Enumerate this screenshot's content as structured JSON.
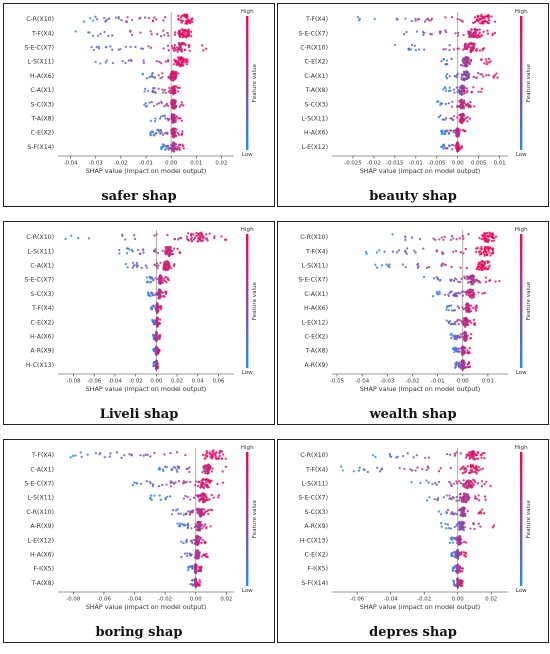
{
  "colors": {
    "low": "#1f8ef5",
    "high": "#ff0053",
    "zero_line": "#999999"
  },
  "colorbar": {
    "high": "High",
    "low": "Low",
    "title": "Feature value"
  },
  "chart_data": [
    {
      "type": "scatter",
      "subtype": "shap-beeswarm",
      "caption": "safer shap",
      "xlabel": "SHAP value (impact on model output)",
      "xlim": [
        -0.045,
        0.025
      ],
      "xticks": [
        -0.04,
        -0.03,
        -0.02,
        -0.01,
        0.0,
        0.01,
        0.02
      ],
      "features": [
        "C-R(X10)",
        "T-F(X4)",
        "S-E-C(X7)",
        "L-S(X11)",
        "H-A(X6)",
        "C-A(X1)",
        "S-C(X3)",
        "T-A(X8)",
        "C-E(X2)",
        "S-F(X14)"
      ],
      "ranges": [
        [
          -0.035,
          0.009
        ],
        [
          -0.039,
          0.008
        ],
        [
          -0.034,
          0.014
        ],
        [
          -0.031,
          0.008
        ],
        [
          -0.012,
          0.005
        ],
        [
          -0.011,
          0.004
        ],
        [
          -0.011,
          0.005
        ],
        [
          -0.008,
          0.006
        ],
        [
          -0.009,
          0.005
        ],
        [
          -0.004,
          0.005
        ]
      ],
      "centers": [
        0.006,
        0.005,
        0.004,
        0.004,
        0.001,
        0.001,
        0.001,
        0.001,
        0.001,
        0.001
      ]
    },
    {
      "type": "scatter",
      "subtype": "shap-beeswarm",
      "caption": "beauty shap",
      "xlabel": "SHAP value (impact on model output)",
      "xlim": [
        -0.03,
        0.012
      ],
      "xticks": [
        -0.025,
        -0.02,
        -0.015,
        -0.01,
        -0.005,
        0.0,
        0.005,
        0.01
      ],
      "features": [
        "T-F(X4)",
        "S-E-C(X7)",
        "C-R(X10)",
        "C-E(X2)",
        "C-A(X1)",
        "T-A(X8)",
        "S-C(X3)",
        "L-S(X11)",
        "H-A(X6)",
        "L-E(X12)"
      ],
      "ranges": [
        [
          -0.024,
          0.009
        ],
        [
          -0.015,
          0.009
        ],
        [
          -0.015,
          0.007
        ],
        [
          -0.005,
          0.008
        ],
        [
          -0.004,
          0.01
        ],
        [
          -0.004,
          0.006
        ],
        [
          -0.005,
          0.004
        ],
        [
          -0.005,
          0.003
        ],
        [
          -0.004,
          0.002
        ],
        [
          -0.004,
          0.001
        ]
      ],
      "centers": [
        0.006,
        0.004,
        0.003,
        0.002,
        0.002,
        0.001,
        0.001,
        0.001,
        0.0,
        0.0
      ]
    },
    {
      "type": "scatter",
      "subtype": "shap-beeswarm",
      "caption": "Liveli shap",
      "xlabel": "SHAP value (impact on model output)",
      "xlim": [
        -0.095,
        0.075
      ],
      "xticks": [
        -0.08,
        -0.06,
        -0.04,
        -0.02,
        0.0,
        0.02,
        0.04,
        0.06
      ],
      "features": [
        "C-R(X10)",
        "L-S(X11)",
        "C-A(X1)",
        "S-E-C(X7)",
        "S-C(X3)",
        "T-F(X4)",
        "C-E(X2)",
        "H-A(X6)",
        "A-R(X9)",
        "H-C(X13)"
      ],
      "ranges": [
        [
          -0.088,
          0.068
        ],
        [
          -0.038,
          0.028
        ],
        [
          -0.033,
          0.02
        ],
        [
          -0.01,
          0.012
        ],
        [
          -0.008,
          0.01
        ],
        [
          -0.006,
          0.005
        ],
        [
          -0.004,
          0.004
        ],
        [
          -0.004,
          0.004
        ],
        [
          -0.003,
          0.003
        ],
        [
          -0.003,
          0.002
        ]
      ],
      "centers": [
        0.04,
        0.012,
        0.01,
        0.004,
        0.003,
        0.001,
        0.001,
        0.0,
        0.0,
        0.0
      ]
    },
    {
      "type": "scatter",
      "subtype": "shap-beeswarm",
      "caption": "wealth shap",
      "xlabel": "SHAP value (impact on model output)",
      "xlim": [
        -0.052,
        0.018
      ],
      "xticks": [
        -0.05,
        -0.04,
        -0.03,
        -0.02,
        -0.01,
        0.0,
        0.01
      ],
      "features": [
        "C-R(X10)",
        "T-F(X4)",
        "L-S(X11)",
        "S-E-C(X7)",
        "C-A(X1)",
        "H-A(X6)",
        "L-E(X12)",
        "C-E(X2)",
        "T-A(X8)",
        "A-R(X9)"
      ],
      "ranges": [
        [
          -0.033,
          0.014
        ],
        [
          -0.04,
          0.012
        ],
        [
          -0.035,
          0.011
        ],
        [
          -0.016,
          0.016
        ],
        [
          -0.012,
          0.009
        ],
        [
          -0.007,
          0.006
        ],
        [
          -0.007,
          0.005
        ],
        [
          -0.005,
          0.004
        ],
        [
          -0.004,
          0.003
        ],
        [
          -0.004,
          0.003
        ]
      ],
      "centers": [
        0.01,
        0.009,
        0.008,
        0.004,
        0.003,
        0.002,
        0.001,
        0.001,
        0.0,
        0.0
      ]
    },
    {
      "type": "scatter",
      "subtype": "shap-beeswarm",
      "caption": "boring shap",
      "xlabel": "SHAP value (impact on model output)",
      "xlim": [
        -0.09,
        0.025
      ],
      "xticks": [
        -0.08,
        -0.06,
        -0.04,
        -0.02,
        0.0,
        0.02
      ],
      "features": [
        "T-F(X4)",
        "C-A(X1)",
        "S-E-C(X7)",
        "L-S(X11)",
        "C-R(X10)",
        "A-R(X9)",
        "L-E(X12)",
        "H-A(X6)",
        "F-I(X5)",
        "T-A(X8)"
      ],
      "ranges": [
        [
          -0.083,
          0.02
        ],
        [
          -0.025,
          0.02
        ],
        [
          -0.045,
          0.018
        ],
        [
          -0.03,
          0.016
        ],
        [
          -0.016,
          0.012
        ],
        [
          -0.012,
          0.01
        ],
        [
          -0.01,
          0.008
        ],
        [
          -0.01,
          0.008
        ],
        [
          -0.005,
          0.004
        ],
        [
          -0.004,
          0.003
        ]
      ],
      "centers": [
        0.012,
        0.008,
        0.006,
        0.005,
        0.003,
        0.002,
        0.001,
        0.001,
        0.0,
        0.0
      ]
    },
    {
      "type": "scatter",
      "subtype": "shap-beeswarm",
      "caption": "depres shap",
      "xlabel": "SHAP value (impact on model output)",
      "xlim": [
        -0.075,
        0.03
      ],
      "xticks": [
        -0.06,
        -0.04,
        -0.02,
        0.0,
        0.02
      ],
      "features": [
        "C-R(X10)",
        "T-F(X4)",
        "L-S(X11)",
        "S-E-C(X7)",
        "S-C(X3)",
        "A-R(X9)",
        "H-C(X13)",
        "C-E(X2)",
        "F-I(X5)",
        "S-F(X14)"
      ],
      "ranges": [
        [
          -0.055,
          0.022
        ],
        [
          -0.07,
          0.02
        ],
        [
          -0.03,
          0.02
        ],
        [
          -0.02,
          0.022
        ],
        [
          -0.012,
          0.016
        ],
        [
          -0.01,
          0.022
        ],
        [
          -0.005,
          0.005
        ],
        [
          -0.004,
          0.005
        ],
        [
          -0.003,
          0.003
        ],
        [
          -0.003,
          0.003
        ]
      ],
      "centers": [
        0.01,
        0.008,
        0.006,
        0.004,
        0.003,
        0.002,
        0.001,
        0.0,
        0.0,
        0.0
      ]
    }
  ]
}
